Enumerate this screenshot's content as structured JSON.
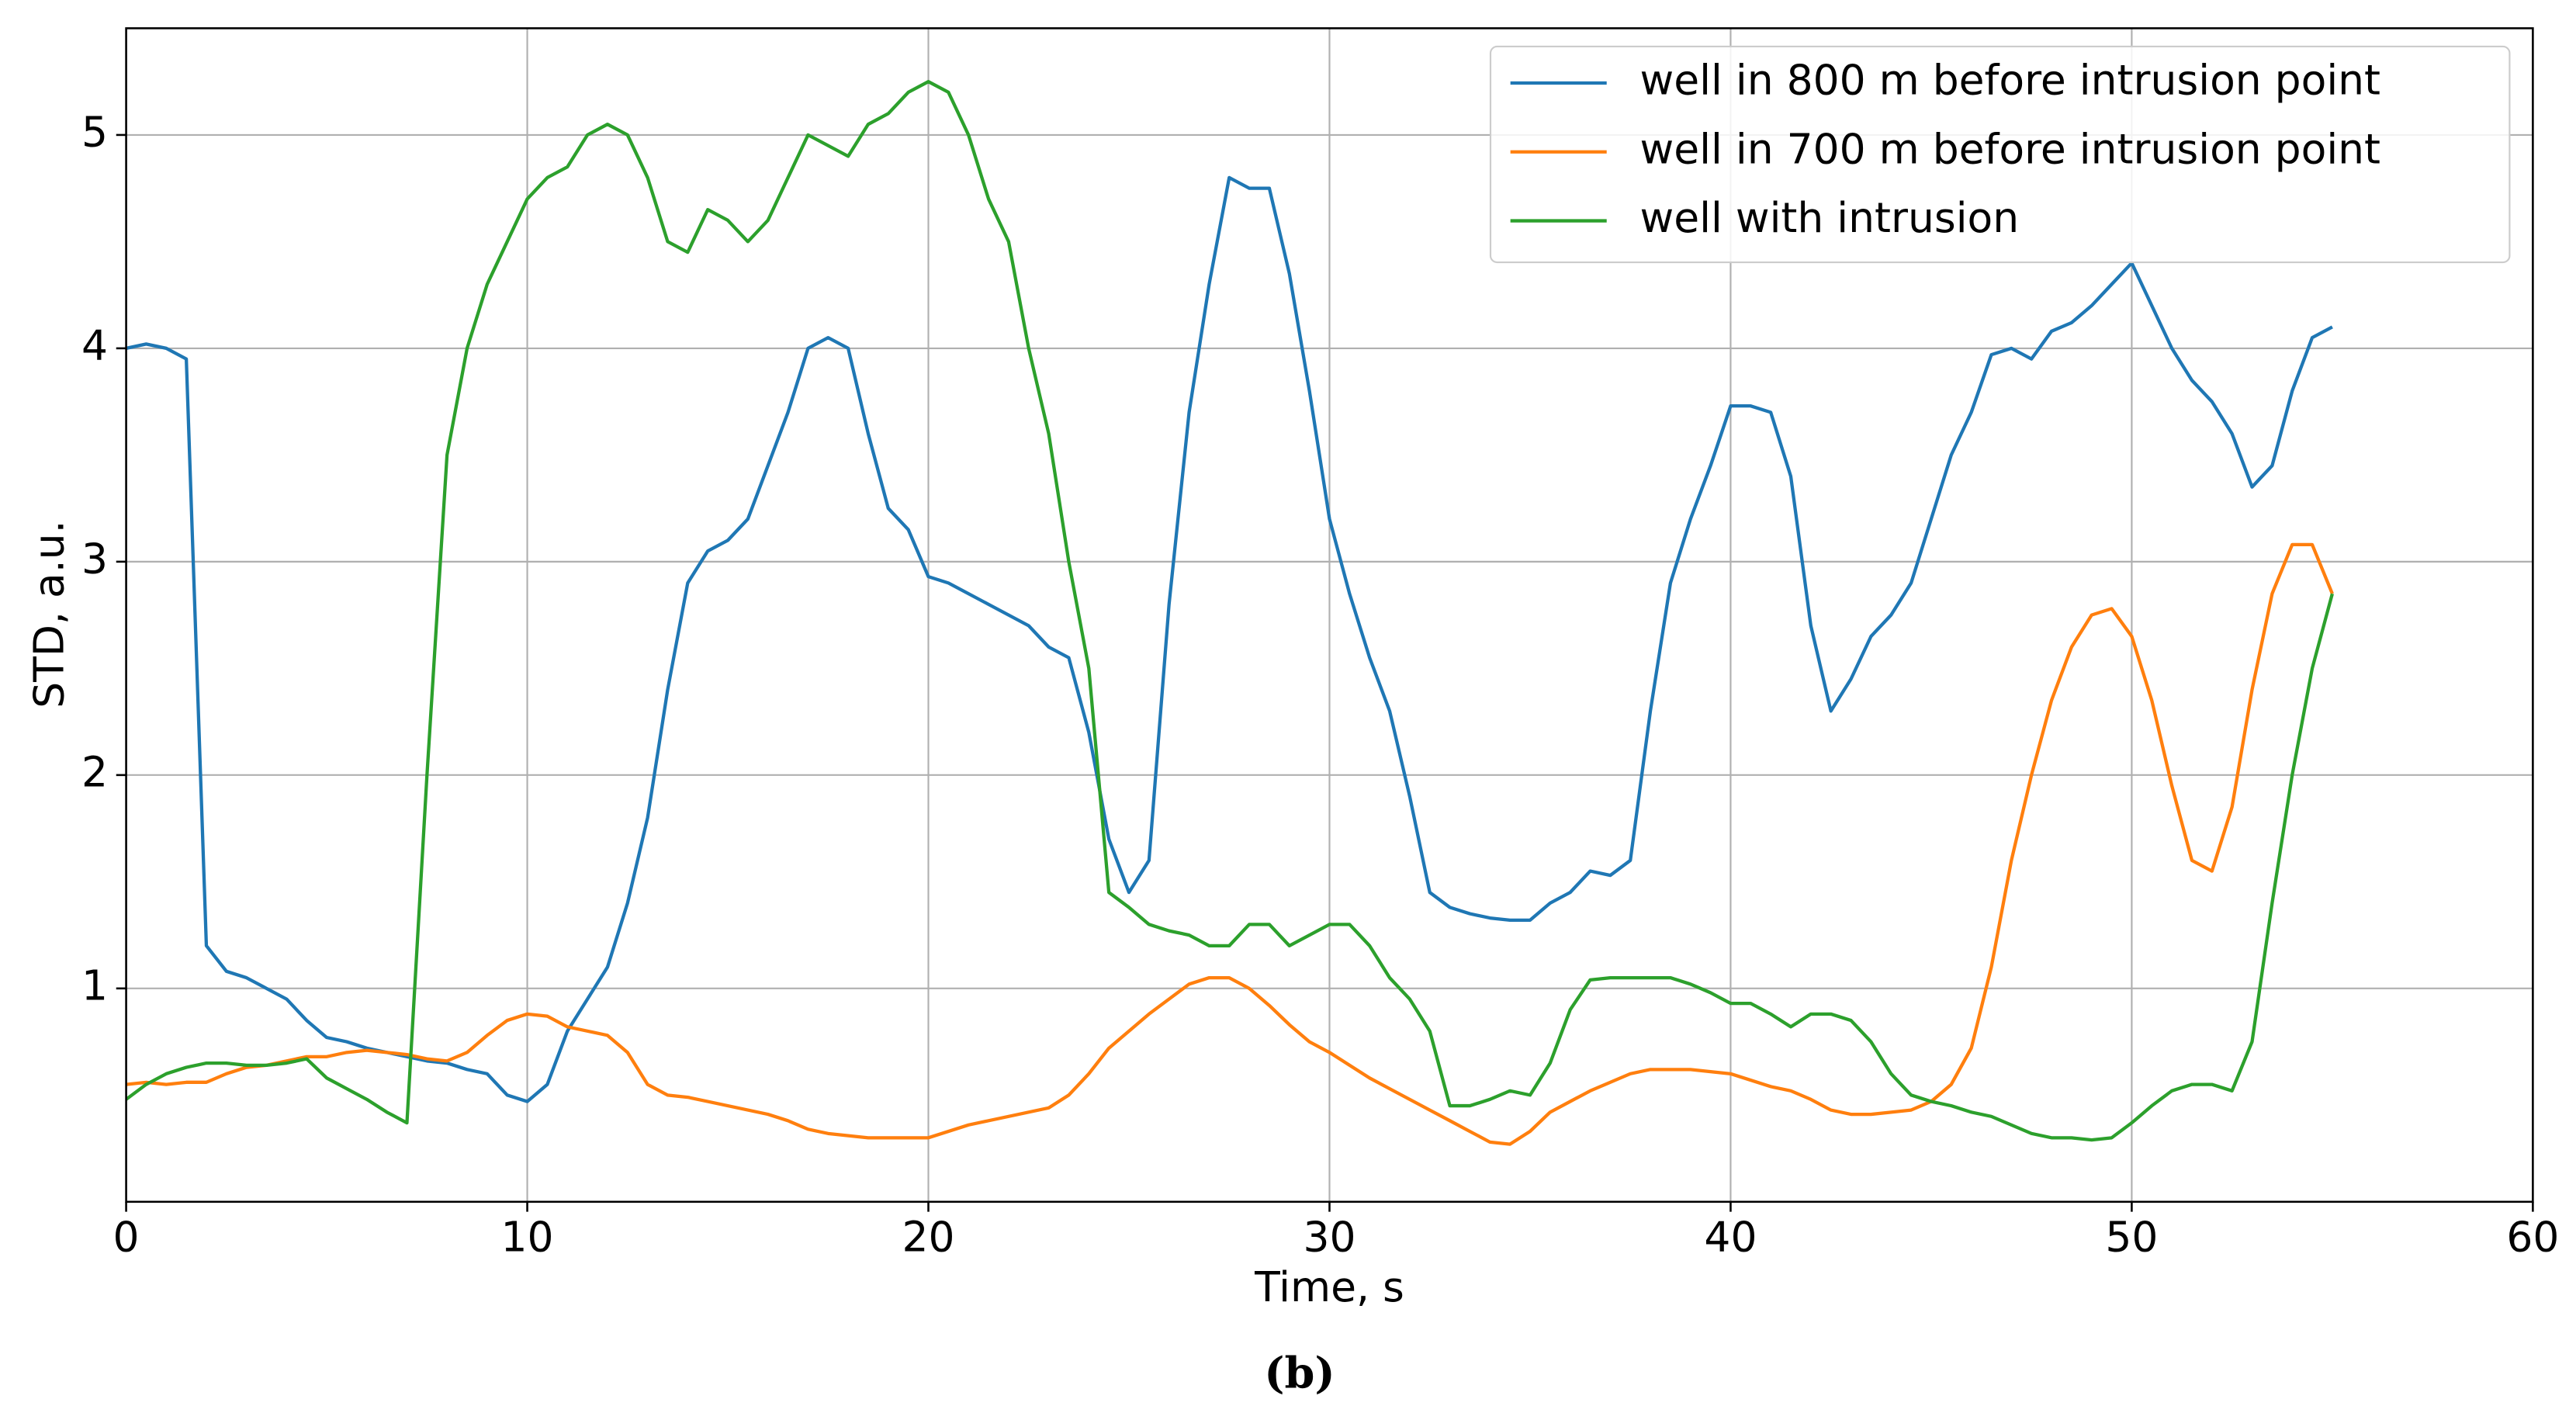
{
  "chart_data": {
    "type": "line",
    "xlabel": "Time, s",
    "ylabel": "STD, a.u.",
    "caption": "(b)",
    "xlim": [
      0,
      60
    ],
    "ylim": [
      0,
      5.5
    ],
    "xticks": [
      0,
      10,
      20,
      30,
      40,
      50,
      60
    ],
    "yticks": [
      1,
      2,
      3,
      4,
      5
    ],
    "grid": true,
    "legend": "upper right",
    "x": [
      0,
      0.5,
      1,
      1.5,
      2,
      2.5,
      3,
      3.5,
      4,
      4.5,
      5,
      5.5,
      6,
      6.5,
      7,
      7.5,
      8,
      8.5,
      9,
      9.5,
      10,
      10.5,
      11,
      11.5,
      12,
      12.5,
      13,
      13.5,
      14,
      14.5,
      15,
      15.5,
      16,
      16.5,
      17,
      17.5,
      18,
      18.5,
      19,
      19.5,
      20,
      20.5,
      21,
      21.5,
      22,
      22.5,
      23,
      23.5,
      24,
      24.5,
      25,
      25.5,
      26,
      26.5,
      27,
      27.5,
      28,
      28.5,
      29,
      29.5,
      30,
      30.5,
      31,
      31.5,
      32,
      32.5,
      33,
      33.5,
      34,
      34.5,
      35,
      35.5,
      36,
      36.5,
      37,
      37.5,
      38,
      38.5,
      39,
      39.5,
      40,
      40.5,
      41,
      41.5,
      42,
      42.5,
      43,
      43.5,
      44,
      44.5,
      45,
      45.5,
      46,
      46.5,
      47,
      47.5,
      48,
      48.5,
      49,
      49.5,
      50,
      50.5,
      51,
      51.5,
      52,
      52.5,
      53,
      53.5,
      54,
      54.5,
      55
    ],
    "series": [
      {
        "name": "well in 800 m before intrusion point",
        "color": "#1f77b4",
        "values": [
          4.0,
          4.02,
          4.0,
          3.95,
          1.2,
          1.08,
          1.05,
          1.0,
          0.95,
          0.85,
          0.77,
          0.75,
          0.72,
          0.7,
          0.68,
          0.66,
          0.65,
          0.62,
          0.6,
          0.5,
          0.47,
          0.55,
          0.8,
          0.95,
          1.1,
          1.4,
          1.8,
          2.4,
          2.9,
          3.05,
          3.1,
          3.2,
          3.45,
          3.7,
          4.0,
          4.05,
          4.0,
          3.6,
          3.25,
          3.15,
          2.93,
          2.9,
          2.85,
          2.8,
          2.75,
          2.7,
          2.6,
          2.55,
          2.2,
          1.7,
          1.45,
          1.6,
          2.8,
          3.7,
          4.3,
          4.8,
          4.75,
          4.75,
          4.35,
          3.8,
          3.2,
          2.85,
          2.55,
          2.3,
          1.9,
          1.45,
          1.38,
          1.35,
          1.33,
          1.32,
          1.32,
          1.4,
          1.45,
          1.55,
          1.53,
          1.6,
          2.3,
          2.9,
          3.2,
          3.45,
          3.73,
          3.73,
          3.7,
          3.4,
          2.7,
          2.3,
          2.45,
          2.65,
          2.75,
          2.9,
          3.2,
          3.5,
          3.7,
          3.97,
          4.0,
          3.95,
          4.08,
          4.12,
          4.2,
          4.3,
          4.4,
          4.2,
          4.0,
          3.85,
          3.75,
          3.6,
          3.35,
          3.45,
          3.8,
          4.05,
          4.1
        ]
      },
      {
        "name": "well in 700 m before intrusion point",
        "color": "#ff7f0e",
        "values": [
          0.55,
          0.56,
          0.55,
          0.56,
          0.56,
          0.6,
          0.63,
          0.64,
          0.66,
          0.68,
          0.68,
          0.7,
          0.71,
          0.7,
          0.69,
          0.67,
          0.66,
          0.7,
          0.78,
          0.85,
          0.88,
          0.87,
          0.82,
          0.8,
          0.78,
          0.7,
          0.55,
          0.5,
          0.49,
          0.47,
          0.45,
          0.43,
          0.41,
          0.38,
          0.34,
          0.32,
          0.31,
          0.3,
          0.3,
          0.3,
          0.3,
          0.33,
          0.36,
          0.38,
          0.4,
          0.42,
          0.44,
          0.5,
          0.6,
          0.72,
          0.8,
          0.88,
          0.95,
          1.02,
          1.05,
          1.05,
          1.0,
          0.92,
          0.83,
          0.75,
          0.7,
          0.64,
          0.58,
          0.53,
          0.48,
          0.43,
          0.38,
          0.33,
          0.28,
          0.27,
          0.33,
          0.42,
          0.47,
          0.52,
          0.56,
          0.6,
          0.62,
          0.62,
          0.62,
          0.61,
          0.6,
          0.57,
          0.54,
          0.52,
          0.48,
          0.43,
          0.41,
          0.41,
          0.42,
          0.43,
          0.47,
          0.55,
          0.72,
          1.1,
          1.6,
          2.0,
          2.35,
          2.6,
          2.75,
          2.78,
          2.65,
          2.35,
          1.95,
          1.6,
          1.55,
          1.85,
          2.4,
          2.85,
          3.08,
          3.08,
          2.85
        ]
      },
      {
        "name": "well with intrusion",
        "color": "#2ca02c",
        "values": [
          0.48,
          0.55,
          0.6,
          0.63,
          0.65,
          0.65,
          0.64,
          0.64,
          0.65,
          0.67,
          0.58,
          0.53,
          0.48,
          0.42,
          0.37,
          2.0,
          3.5,
          4.0,
          4.3,
          4.5,
          4.7,
          4.8,
          4.85,
          5.0,
          5.05,
          5.0,
          4.8,
          4.5,
          4.45,
          4.65,
          4.6,
          4.5,
          4.6,
          4.8,
          5.0,
          4.95,
          4.9,
          5.05,
          5.1,
          5.2,
          5.25,
          5.2,
          5.0,
          4.7,
          4.5,
          4.0,
          3.6,
          3.0,
          2.5,
          1.45,
          1.38,
          1.3,
          1.27,
          1.25,
          1.2,
          1.2,
          1.3,
          1.3,
          1.2,
          1.25,
          1.3,
          1.3,
          1.2,
          1.05,
          0.95,
          0.8,
          0.45,
          0.45,
          0.48,
          0.52,
          0.5,
          0.65,
          0.9,
          1.04,
          1.05,
          1.05,
          1.05,
          1.05,
          1.02,
          0.98,
          0.93,
          0.93,
          0.88,
          0.82,
          0.88,
          0.88,
          0.85,
          0.75,
          0.6,
          0.5,
          0.47,
          0.45,
          0.42,
          0.4,
          0.36,
          0.32,
          0.3,
          0.3,
          0.29,
          0.3,
          0.37,
          0.45,
          0.52,
          0.55,
          0.55,
          0.52,
          0.75,
          1.4,
          2.0,
          2.5,
          2.85
        ]
      }
    ]
  }
}
